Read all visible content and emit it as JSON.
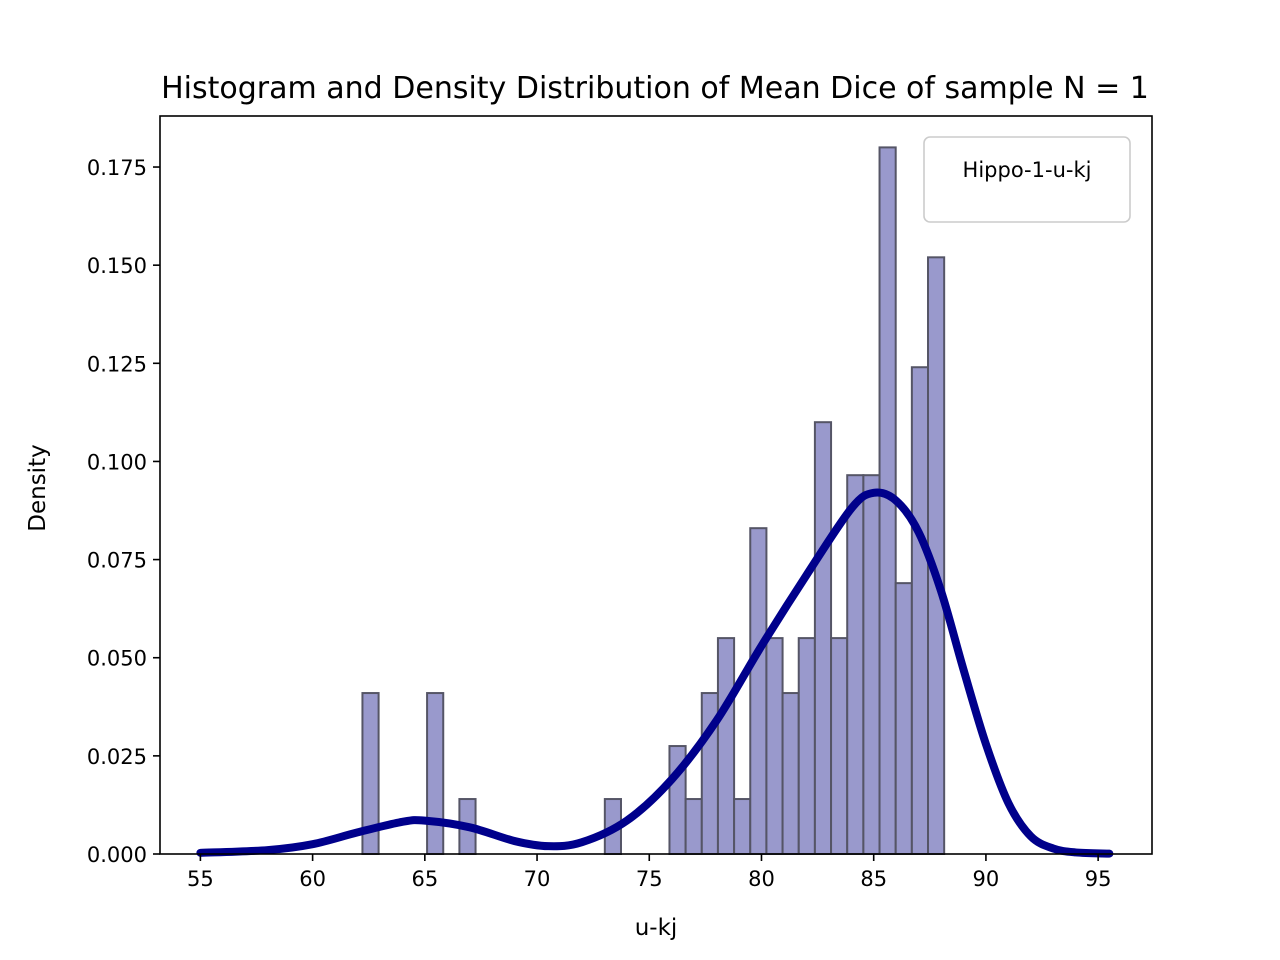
{
  "chart_data": {
    "type": "bar",
    "title": "Histogram and Density Distribution of Mean Dice of sample N = 1",
    "xlabel": "u-kj",
    "ylabel": "Density",
    "xlim": [
      53.2,
      97.4
    ],
    "ylim": [
      0,
      0.188
    ],
    "xticks": [
      55,
      60,
      65,
      70,
      75,
      80,
      85,
      90,
      95
    ],
    "xtick_labels": [
      "55",
      "60",
      "65",
      "70",
      "75",
      "80",
      "85",
      "90",
      "95"
    ],
    "yticks": [
      0,
      0.025,
      0.05,
      0.075,
      0.1,
      0.125,
      0.15,
      0.175
    ],
    "ytick_labels": [
      "0.000",
      "0.025",
      "0.050",
      "0.075",
      "0.100",
      "0.125",
      "0.150",
      "0.175"
    ],
    "grid": false,
    "legend": {
      "position": "top-right",
      "entries": [
        "Hippo-1-u-kj"
      ]
    },
    "histogram": {
      "bin_width": 0.72,
      "bins": [
        {
          "x0": 62.22,
          "density": 0.041
        },
        {
          "x0": 65.1,
          "density": 0.041
        },
        {
          "x0": 66.54,
          "density": 0.014
        },
        {
          "x0": 73.02,
          "density": 0.014
        },
        {
          "x0": 75.9,
          "density": 0.0275
        },
        {
          "x0": 76.62,
          "density": 0.014
        },
        {
          "x0": 77.34,
          "density": 0.041
        },
        {
          "x0": 78.06,
          "density": 0.055
        },
        {
          "x0": 78.78,
          "density": 0.014
        },
        {
          "x0": 79.5,
          "density": 0.083
        },
        {
          "x0": 80.22,
          "density": 0.055
        },
        {
          "x0": 80.94,
          "density": 0.041
        },
        {
          "x0": 81.66,
          "density": 0.055
        },
        {
          "x0": 82.38,
          "density": 0.11
        },
        {
          "x0": 83.1,
          "density": 0.055
        },
        {
          "x0": 83.82,
          "density": 0.0965
        },
        {
          "x0": 84.54,
          "density": 0.0965
        },
        {
          "x0": 85.26,
          "density": 0.18
        },
        {
          "x0": 85.98,
          "density": 0.069
        },
        {
          "x0": 86.7,
          "density": 0.124
        },
        {
          "x0": 87.42,
          "density": 0.152
        }
      ],
      "fill": "#9999CC",
      "edge": "#555566"
    },
    "density_curve": {
      "color": "#00008B",
      "x": [
        55,
        58,
        60,
        62,
        64,
        65,
        67,
        69,
        70.5,
        72,
        74,
        76,
        78,
        80,
        82,
        84,
        85,
        86,
        87,
        88,
        89,
        90,
        91,
        92,
        93,
        94,
        95.5
      ],
      "y": [
        0.0003,
        0.001,
        0.0025,
        0.0055,
        0.0082,
        0.0085,
        0.0068,
        0.0033,
        0.002,
        0.003,
        0.0085,
        0.019,
        0.034,
        0.053,
        0.071,
        0.088,
        0.092,
        0.09,
        0.082,
        0.067,
        0.047,
        0.028,
        0.013,
        0.0045,
        0.0014,
        0.0004,
        0.0001
      ]
    }
  }
}
